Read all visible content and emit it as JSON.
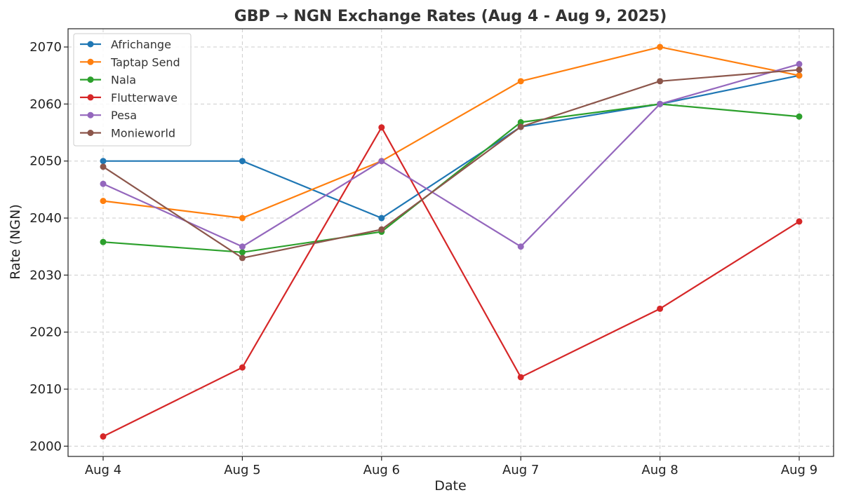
{
  "chart_data": {
    "type": "line",
    "title": "GBP → NGN Exchange Rates (Aug 4 - Aug 9, 2025)",
    "xlabel": "Date",
    "ylabel": "Rate (NGN)",
    "categories": [
      "Aug 4",
      "Aug 5",
      "Aug 6",
      "Aug 7",
      "Aug 8",
      "Aug 9"
    ],
    "yticks": [
      2000,
      2010,
      2020,
      2030,
      2040,
      2050,
      2060,
      2070
    ],
    "ylim": [
      1998.2,
      2073.2
    ],
    "grid": true,
    "legend_position": "top-left",
    "series": [
      {
        "name": "Africhange",
        "color": "#1f77b4",
        "values": [
          2050,
          2050,
          2040,
          2056,
          2060,
          2065
        ]
      },
      {
        "name": "Taptap Send",
        "color": "#ff7f0e",
        "values": [
          2043,
          2040,
          2050,
          2064,
          2070,
          2065
        ]
      },
      {
        "name": "Nala",
        "color": "#2ca02c",
        "values": [
          2035.8,
          2034,
          2037.6,
          2056.8,
          2060,
          2057.8
        ]
      },
      {
        "name": "Flutterwave",
        "color": "#d62728",
        "values": [
          2001.7,
          2013.8,
          2055.9,
          2012.1,
          2024.1,
          2039.4
        ]
      },
      {
        "name": "Pesa",
        "color": "#9467bd",
        "values": [
          2046,
          2035,
          2050,
          2035,
          2060,
          2067
        ]
      },
      {
        "name": "Monieworld",
        "color": "#8c564b",
        "values": [
          2049,
          2033,
          2038,
          2056,
          2064,
          2066
        ]
      }
    ]
  }
}
